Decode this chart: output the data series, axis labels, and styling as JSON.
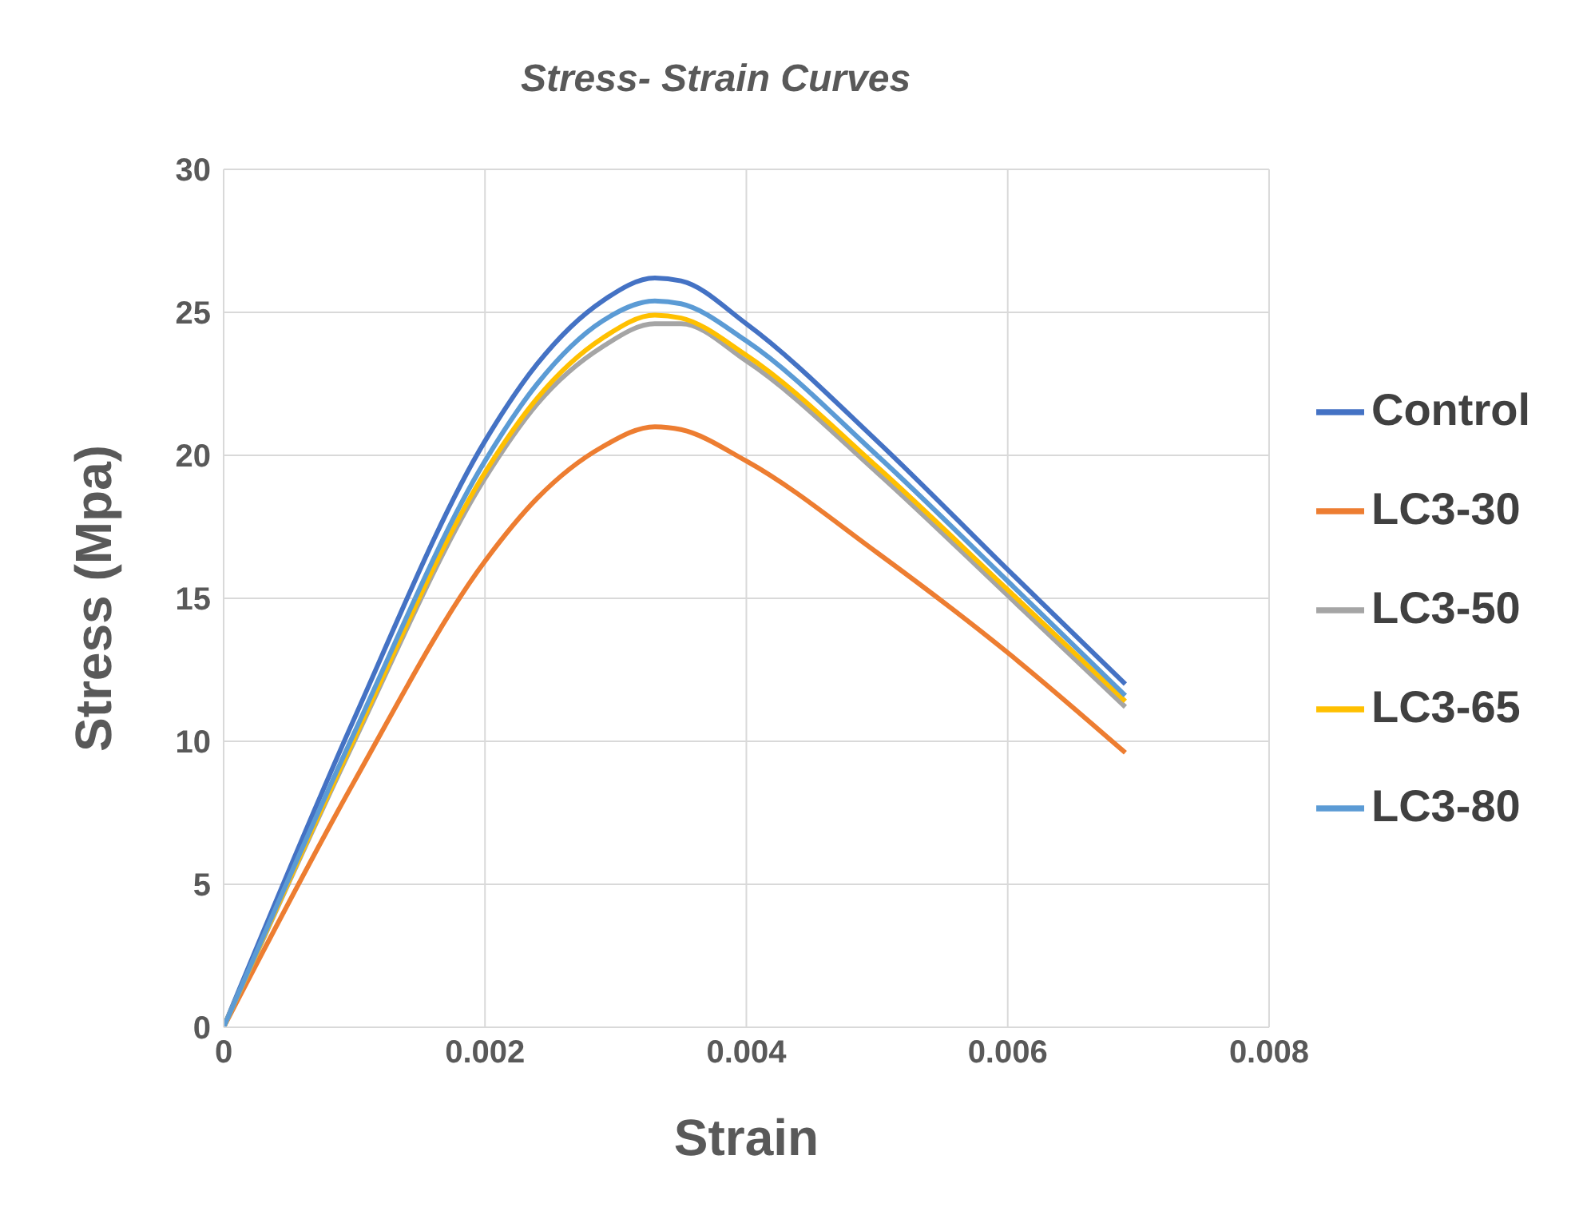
{
  "chart_data": {
    "type": "line",
    "title": "Stress- Strain  Curves",
    "xlabel": "Strain",
    "ylabel": "Stress (Mpa)",
    "x": [
      0,
      0.001,
      0.002,
      0.0024,
      0.0029,
      0.0033,
      0.0035,
      0.004,
      0.005,
      0.006,
      0.0069
    ],
    "series": [
      {
        "name": "Control",
        "color": "#4472c4",
        "values": [
          0,
          10.8,
          20.5,
          23.2,
          25.4,
          26.2,
          26.1,
          24.6,
          20.5,
          16.0,
          12.0
        ]
      },
      {
        "name": "LC3-30",
        "color": "#ed7d31",
        "values": [
          0,
          8.6,
          16.3,
          18.5,
          20.3,
          21.0,
          20.9,
          19.8,
          16.6,
          13.1,
          9.6
        ]
      },
      {
        "name": "LC3-50",
        "color": "#a5a5a5",
        "values": [
          0,
          10.0,
          19.2,
          21.8,
          23.8,
          24.6,
          24.6,
          23.3,
          19.4,
          15.1,
          11.2
        ]
      },
      {
        "name": "LC3-65",
        "color": "#ffc000",
        "values": [
          0,
          10.1,
          19.4,
          22.0,
          24.1,
          24.9,
          24.8,
          23.5,
          19.6,
          15.3,
          11.4
        ]
      },
      {
        "name": "LC3-80",
        "color": "#5b9bd5",
        "values": [
          0,
          10.3,
          19.8,
          22.5,
          24.7,
          25.4,
          25.3,
          24.0,
          20.0,
          15.6,
          11.6
        ]
      }
    ],
    "xlim": [
      0,
      0.008
    ],
    "xticks": [
      0,
      0.002,
      0.004,
      0.006,
      0.008
    ],
    "ylim": [
      0,
      30
    ],
    "yticks": [
      0,
      5,
      10,
      15,
      20,
      25,
      30
    ],
    "grid": true,
    "legend": "right",
    "marker": "none",
    "line_style": "solid"
  }
}
